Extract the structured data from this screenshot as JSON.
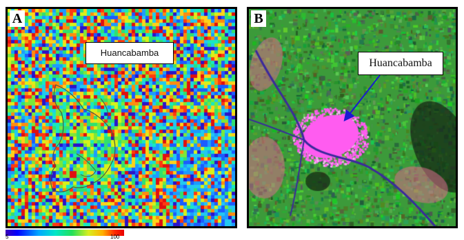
{
  "panels": [
    {
      "letter": "A",
      "callout": "Huancabamba",
      "palette": [
        "#2c14c8",
        "#1b5cff",
        "#1d9bff",
        "#22c8f0",
        "#18e8c0",
        "#30e070",
        "#7ce838",
        "#d6f21a",
        "#ffd21a",
        "#ff8c10",
        "#ff3a10",
        "#e01010"
      ]
    },
    {
      "letter": "B",
      "callout": "Huancabamba",
      "colors": {
        "vegetation": "#3c9a3a",
        "urban": "#ff5cf0",
        "river": "#3a2a9c",
        "bare_soil": "#d86a8a",
        "arrow": "#1a1ad0"
      }
    }
  ],
  "legend": {
    "min_label": "5",
    "max_label": "100"
  }
}
